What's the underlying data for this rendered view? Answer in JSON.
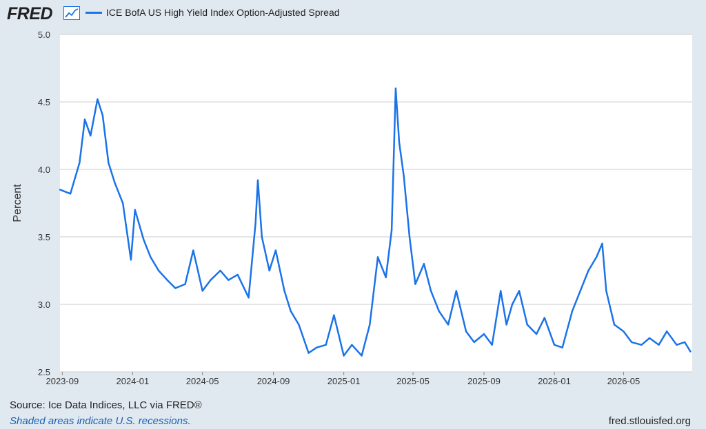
{
  "header": {
    "logo_text": "FRED",
    "logo_icon": "chart-line-icon",
    "legend_label": "ICE BofA US High Yield Index Option-Adjusted Spread"
  },
  "colors": {
    "background": "#e1e9f0",
    "plot_background": "#ffffff",
    "series": "#1a73e8",
    "grid": "#c8ccd0"
  },
  "chart_data": {
    "type": "line",
    "title": "",
    "ylabel": "Percent",
    "xlabel": "",
    "ylim": [
      2.5,
      5.0
    ],
    "yticks": [
      "2.5",
      "3.0",
      "3.5",
      "4.0",
      "4.5",
      "5.0"
    ],
    "xticks": [
      "2023-09",
      "2024-01",
      "2024-05",
      "2024-09",
      "2025-01",
      "2025-05",
      "2025-09",
      "2026-01",
      "2026-05"
    ],
    "grid": true,
    "legend_position": "top",
    "series": [
      {
        "name": "ICE BofA US High Yield Index Option-Adjusted Spread",
        "x": [
          "2023-08-28",
          "2023-09-15",
          "2023-10-01",
          "2023-10-10",
          "2023-10-20",
          "2023-11-01",
          "2023-11-10",
          "2023-11-20",
          "2023-12-01",
          "2023-12-15",
          "2023-12-29",
          "2024-01-05",
          "2024-01-20",
          "2024-02-01",
          "2024-02-15",
          "2024-03-01",
          "2024-03-15",
          "2024-04-01",
          "2024-04-15",
          "2024-05-01",
          "2024-05-15",
          "2024-06-01",
          "2024-06-15",
          "2024-07-01",
          "2024-07-20",
          "2024-08-01",
          "2024-08-05",
          "2024-08-12",
          "2024-08-25",
          "2024-09-05",
          "2024-09-20",
          "2024-10-01",
          "2024-10-15",
          "2024-11-01",
          "2024-11-15",
          "2024-12-01",
          "2024-12-15",
          "2025-01-01",
          "2025-01-15",
          "2025-02-01",
          "2025-02-15",
          "2025-03-01",
          "2025-03-15",
          "2025-03-25",
          "2025-04-01",
          "2025-04-07",
          "2025-04-15",
          "2025-04-25",
          "2025-05-05",
          "2025-05-20",
          "2025-06-01",
          "2025-06-15",
          "2025-07-01",
          "2025-07-15",
          "2025-08-01",
          "2025-08-15",
          "2025-09-01",
          "2025-09-15",
          "2025-09-30",
          "2025-10-10",
          "2025-10-20",
          "2025-11-01",
          "2025-11-15",
          "2025-12-01",
          "2025-12-15",
          "2026-01-01",
          "2026-01-15",
          "2026-02-01",
          "2026-02-15",
          "2026-03-01",
          "2026-03-15",
          "2026-03-25",
          "2026-04-01",
          "2026-04-15",
          "2026-05-01",
          "2026-05-15",
          "2026-06-01",
          "2026-06-15",
          "2026-07-01",
          "2026-07-15",
          "2026-08-01",
          "2026-08-15",
          "2026-08-25"
        ],
        "values": [
          3.85,
          3.82,
          4.05,
          4.37,
          4.25,
          4.52,
          4.4,
          4.05,
          3.9,
          3.75,
          3.33,
          3.7,
          3.48,
          3.35,
          3.25,
          3.18,
          3.12,
          3.15,
          3.4,
          3.1,
          3.18,
          3.25,
          3.18,
          3.22,
          3.05,
          3.6,
          3.92,
          3.5,
          3.25,
          3.4,
          3.1,
          2.95,
          2.85,
          2.64,
          2.68,
          2.7,
          2.92,
          2.62,
          2.7,
          2.62,
          2.85,
          3.35,
          3.2,
          3.55,
          4.6,
          4.2,
          3.95,
          3.5,
          3.15,
          3.3,
          3.1,
          2.95,
          2.85,
          3.1,
          2.8,
          2.72,
          2.78,
          2.7,
          3.1,
          2.85,
          3.0,
          3.1,
          2.85,
          2.78,
          2.9,
          2.7,
          2.68,
          2.95,
          3.1,
          3.25,
          3.35,
          3.45,
          3.1,
          2.85,
          2.8,
          2.72,
          2.7,
          2.75,
          2.7,
          2.8,
          2.7,
          2.72,
          2.65
        ]
      }
    ],
    "source": "Source: Ice Data Indices, LLC via FRED®",
    "note": "Shaded areas indicate U.S. recessions.",
    "site": "fred.stlouisfed.org"
  }
}
